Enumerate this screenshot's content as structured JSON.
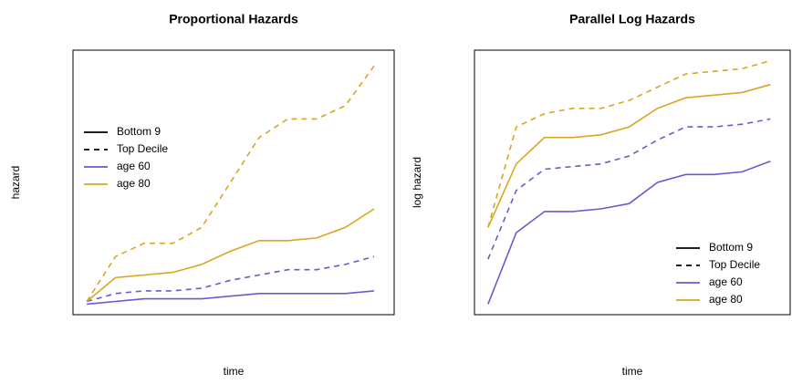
{
  "chart_data": [
    {
      "type": "line",
      "title": "Proportional Hazards",
      "x_label": "time",
      "y_label": "hazard",
      "x": [
        0,
        1,
        2,
        3,
        4,
        5,
        6,
        7,
        8,
        9,
        10
      ],
      "xlim": [
        -0.48,
        10.7
      ],
      "ylim": [
        0,
        100
      ],
      "legend_position": "top-left",
      "legend": [
        {
          "label": "Bottom 9",
          "dashed": false
        },
        {
          "label": "Top Decile",
          "dashed": true
        },
        {
          "label": "age 60",
          "color": "#6a5acd"
        },
        {
          "label": "age 80",
          "color": "#daa520"
        }
      ],
      "series": [
        {
          "color": "#6a5acd",
          "dashed": false,
          "values": [
            4,
            5,
            6,
            6,
            6,
            7,
            8,
            8,
            8,
            8,
            9
          ]
        },
        {
          "color": "#6a5acd",
          "dashed": true,
          "values": [
            5,
            8,
            9,
            9,
            10,
            13,
            15,
            17,
            17,
            19,
            22
          ]
        },
        {
          "color": "#daa520",
          "dashed": false,
          "values": [
            5,
            14,
            15,
            16,
            19,
            24,
            28,
            28,
            29,
            33,
            40
          ]
        },
        {
          "color": "#daa520",
          "dashed": true,
          "values": [
            5,
            22,
            27,
            27,
            33,
            50,
            67,
            74,
            74,
            79,
            94
          ]
        }
      ]
    },
    {
      "type": "line",
      "title": "Parallel Log Hazards",
      "x_label": "time",
      "y_label": "log hazard",
      "x": [
        0,
        1,
        2,
        3,
        4,
        5,
        6,
        7,
        8,
        9,
        10
      ],
      "xlim": [
        -0.48,
        10.7
      ],
      "ylim": [
        0,
        100
      ],
      "legend_position": "bottom-right",
      "legend": [
        {
          "label": "Bottom 9",
          "dashed": false
        },
        {
          "label": "Top Decile",
          "dashed": true
        },
        {
          "label": "age 60",
          "color": "#6a5acd"
        },
        {
          "label": "age 80",
          "color": "#daa520"
        }
      ],
      "series": [
        {
          "color": "#6a5acd",
          "dashed": false,
          "values": [
            4,
            31,
            39,
            39,
            40,
            42,
            50,
            53,
            53,
            54,
            58
          ]
        },
        {
          "color": "#6a5acd",
          "dashed": true,
          "values": [
            21,
            47,
            55,
            56,
            57,
            60,
            66,
            71,
            71,
            72,
            74
          ]
        },
        {
          "color": "#daa520",
          "dashed": false,
          "values": [
            33,
            57,
            67,
            67,
            68,
            71,
            78,
            82,
            83,
            84,
            87
          ]
        },
        {
          "color": "#daa520",
          "dashed": true,
          "values": [
            33,
            71,
            76,
            78,
            78,
            81,
            86,
            91,
            92,
            93,
            96
          ]
        }
      ]
    }
  ]
}
